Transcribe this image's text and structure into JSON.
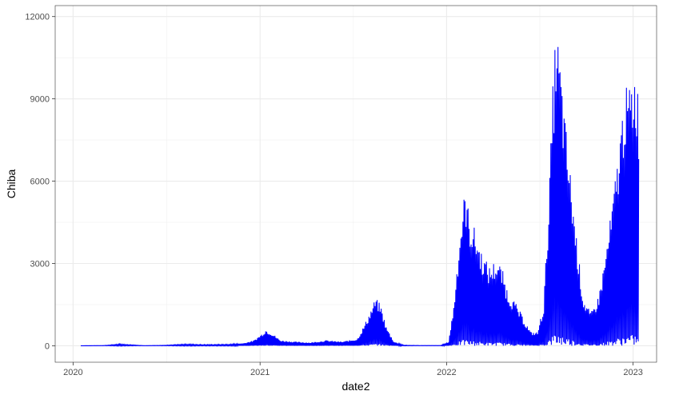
{
  "chart_data": {
    "type": "line",
    "title": "",
    "xlabel": "date2",
    "ylabel": "Chiba",
    "x_type": "date",
    "xlim": [
      "2019-11-27",
      "2023-02-16"
    ],
    "ylim": [
      -600,
      12400
    ],
    "x_ticks": [
      {
        "date": "2020-01-01",
        "label": "2020"
      },
      {
        "date": "2021-01-01",
        "label": "2021"
      },
      {
        "date": "2022-01-01",
        "label": "2022"
      },
      {
        "date": "2023-01-01",
        "label": "2023"
      }
    ],
    "y_ticks": [
      {
        "value": 0,
        "label": "0"
      },
      {
        "value": 3000,
        "label": "3000"
      },
      {
        "value": 6000,
        "label": "6000"
      },
      {
        "value": 9000,
        "label": "9000"
      },
      {
        "value": 12000,
        "label": "12000"
      }
    ],
    "grid": true,
    "legend": "none",
    "series": [
      {
        "color": "#0000ff",
        "display": "daily values alternating between the level below and near zero",
        "points": [
          [
            "2020-01-16",
            0
          ],
          [
            "2020-03-01",
            10
          ],
          [
            "2020-04-01",
            60
          ],
          [
            "2020-04-20",
            40
          ],
          [
            "2020-05-20",
            5
          ],
          [
            "2020-07-01",
            20
          ],
          [
            "2020-08-10",
            60
          ],
          [
            "2020-09-10",
            40
          ],
          [
            "2020-11-01",
            50
          ],
          [
            "2020-12-01",
            100
          ],
          [
            "2020-12-20",
            200
          ],
          [
            "2021-01-05",
            450
          ],
          [
            "2021-01-12",
            600
          ],
          [
            "2021-01-22",
            500
          ],
          [
            "2021-02-10",
            200
          ],
          [
            "2021-03-10",
            150
          ],
          [
            "2021-04-10",
            120
          ],
          [
            "2021-05-10",
            200
          ],
          [
            "2021-06-10",
            150
          ],
          [
            "2021-07-10",
            250
          ],
          [
            "2021-07-25",
            800
          ],
          [
            "2021-08-05",
            1300
          ],
          [
            "2021-08-15",
            1750
          ],
          [
            "2021-08-25",
            1500
          ],
          [
            "2021-09-05",
            700
          ],
          [
            "2021-09-20",
            150
          ],
          [
            "2021-10-10",
            20
          ],
          [
            "2021-11-10",
            10
          ],
          [
            "2021-12-20",
            10
          ],
          [
            "2022-01-05",
            150
          ],
          [
            "2022-01-15",
            1500
          ],
          [
            "2022-01-25",
            3800
          ],
          [
            "2022-02-02",
            5200
          ],
          [
            "2022-02-07",
            5800
          ],
          [
            "2022-02-15",
            4700
          ],
          [
            "2022-02-25",
            4300
          ],
          [
            "2022-03-10",
            3500
          ],
          [
            "2022-03-25",
            2900
          ],
          [
            "2022-04-10",
            3200
          ],
          [
            "2022-04-20",
            2800
          ],
          [
            "2022-05-01",
            2000
          ],
          [
            "2022-05-15",
            1600
          ],
          [
            "2022-06-01",
            1000
          ],
          [
            "2022-06-15",
            500
          ],
          [
            "2022-06-28",
            500
          ],
          [
            "2022-07-10",
            1500
          ],
          [
            "2022-07-20",
            5400
          ],
          [
            "2022-07-28",
            9500
          ],
          [
            "2022-08-03",
            11800
          ],
          [
            "2022-08-10",
            10800
          ],
          [
            "2022-08-20",
            8500
          ],
          [
            "2022-09-01",
            6200
          ],
          [
            "2022-09-15",
            3500
          ],
          [
            "2022-09-25",
            1800
          ],
          [
            "2022-10-10",
            1200
          ],
          [
            "2022-10-25",
            1800
          ],
          [
            "2022-11-05",
            3000
          ],
          [
            "2022-11-20",
            5000
          ],
          [
            "2022-12-05",
            7500
          ],
          [
            "2022-12-15",
            9400
          ],
          [
            "2022-12-25",
            9500
          ],
          [
            "2023-01-03",
            10200
          ],
          [
            "2023-01-07",
            10200
          ],
          [
            "2023-01-12",
            9000
          ]
        ]
      }
    ]
  }
}
